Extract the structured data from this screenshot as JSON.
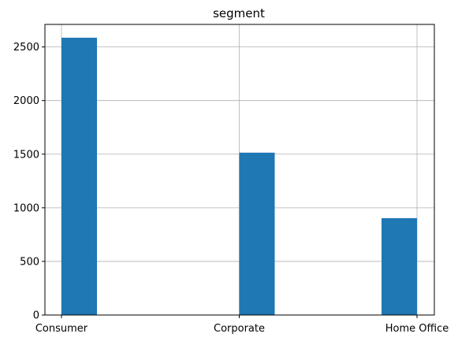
{
  "chart_data": {
    "type": "bar",
    "title": "segment",
    "xlabel": "",
    "ylabel": "",
    "categories": [
      "Consumer",
      "Corporate",
      "Home Office"
    ],
    "values": [
      2586,
      1514,
      903
    ],
    "ylim": [
      0,
      2710
    ],
    "yticks": [
      0,
      500,
      1000,
      1500,
      2000,
      2500
    ],
    "grid": true,
    "bar_color": "#1f77b4",
    "grid_color": "#b0b0b0"
  }
}
